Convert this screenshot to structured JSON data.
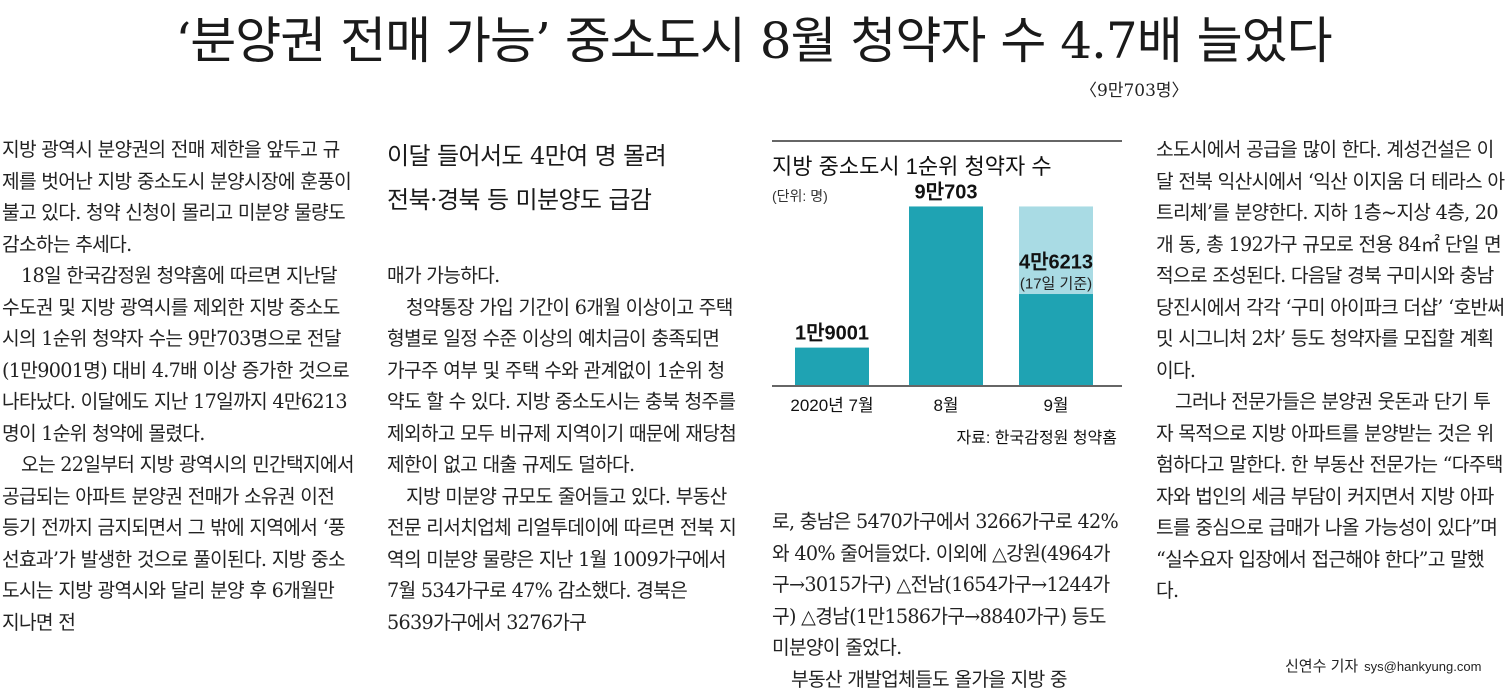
{
  "article": {
    "headline": "‘분양권 전매 가능’ 중소도시 8월 청약자 수 4.7배 늘었다",
    "subnote": "〈9만703명〉",
    "subhead": [
      "이달 들어서도 4만여 명 몰려",
      "전북·경북 등 미분양도 급감"
    ],
    "col1": [
      "지방 광역시 분양권의 전매 제한을 앞두고 규제를 벗어난 지방 중소도시 분양시장에 훈풍이 불고 있다. 청약 신청이 몰리고 미분양 물량도 감소하는 추세다.",
      "18일 한국감정원 청약홈에 따르면 지난달 수도권 및 지방 광역시를 제외한 지방 중소도시의 1순위 청약자 수는 9만703명으로 전달(1만9001명) 대비 4.7배 이상 증가한 것으로 나타났다. 이달에도 지난 17일까지 4만6213명이 1순위 청약에 몰렸다.",
      "오는 22일부터 지방 광역시의 민간택지에서 공급되는 아파트 분양권 전매가 소유권 이전 등기 전까지 금지되면서 그 밖에 지역에서 ‘풍선효과’가 발생한 것으로 풀이된다. 지방 중소도시는 지방 광역시와 달리 분양 후 6개월만 지나면 전"
    ],
    "col2": [
      "매가 가능하다.",
      "청약통장 가입 기간이 6개월 이상이고 주택형별로 일정 수준 이상의 예치금이 충족되면 가구주 여부 및 주택 수와 관계없이 1순위 청약도 할 수 있다. 지방 중소도시는 충북 청주를 제외하고 모두 비규제 지역이기 때문에 재당첨 제한이 없고 대출 규제도 덜하다.",
      "지방 미분양 규모도 줄어들고 있다. 부동산 전문 리서치업체 리얼투데이에 따르면 전북 지역의 미분양 물량은 지난 1월 1009가구에서 7월 534가구로 47% 감소했다. 경북은 5639가구에서 3276가구"
    ],
    "col3": [
      "로, 충남은 5470가구에서 3266가구로 42%와 40% 줄어들었다. 이외에 △강원(4964가구→3015가구) △전남(1654가구→1244가구) △경남(1만1586가구→8840가구) 등도 미분양이 줄었다.",
      "부동산 개발업체들도 올가을 지방 중"
    ],
    "col4": [
      "소도시에서 공급을 많이 한다. 계성건설은 이달 전북 익산시에서 ‘익산 이지움 더 테라스 아트리체’를 분양한다. 지하 1층~지상 4층, 20개 동, 총 192가구 규모로 전용 84㎡ 단일 면적으로 조성된다. 다음달 경북 구미시와 충남 당진시에서 각각 ‘구미 아이파크 더샵’ ‘호반써밋 시그니처 2차’ 등도 청약자를 모집할 계획이다.",
      "그러나 전문가들은 분양권 웃돈과 단기 투자 목적으로 지방 아파트를 분양받는 것은 위험하다고 말한다. 한 부동산 전문가는 “다주택자와 법인의 세금 부담이 커지면서 지방 아파트를 중심으로 급매가 나올 가능성이 있다”며 “실수요자 입장에서 접근해야 한다”고 말했다."
    ],
    "byline": {
      "name": "신연수 기자",
      "email": "sys@hankyung.com"
    }
  },
  "chart_data": {
    "type": "bar",
    "title": "지방 중소도시 1순위 청약자 수",
    "unit": "(단위: 명)",
    "source": "자료: 한국감정원 청약홈",
    "categories": [
      "2020년 7월",
      "8월",
      "9월"
    ],
    "values": [
      19001,
      90703,
      46213
    ],
    "value_labels": [
      "1만9001",
      "9만703",
      "4만6213"
    ],
    "extra_label": "(17일 기준)",
    "ghost_value": 90703,
    "ylim": [
      0,
      95000
    ],
    "colors": {
      "bar": "#1fa3b3",
      "ghost": "#a9dbe4",
      "axis": "#333333"
    }
  }
}
